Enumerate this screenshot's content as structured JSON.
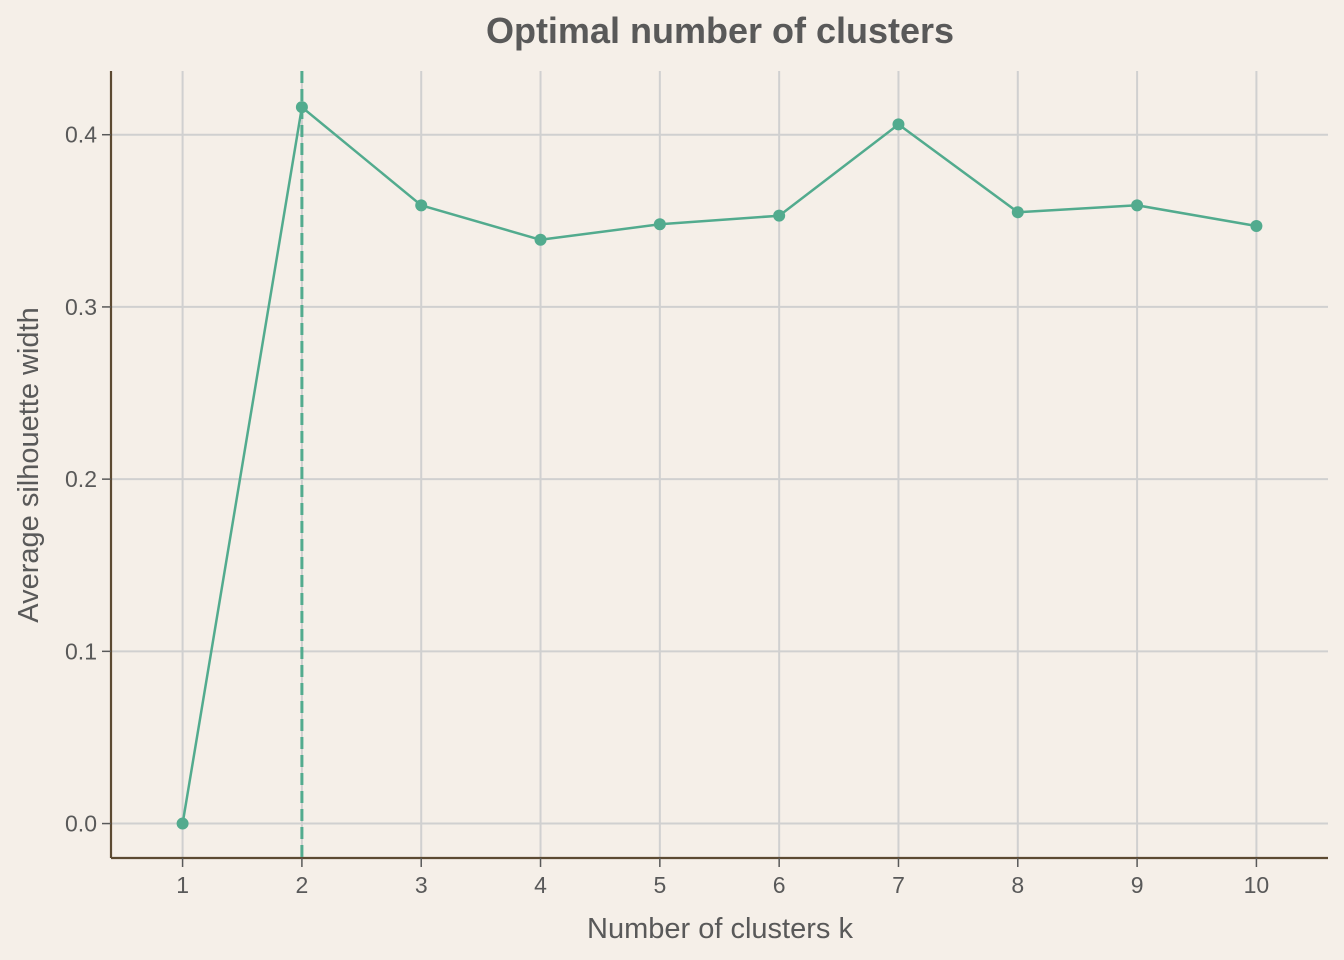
{
  "chart_data": {
    "type": "line",
    "title": "Optimal number of clusters",
    "xlabel": "Number of clusters k",
    "ylabel": "Average silhouette width",
    "x": [
      1,
      2,
      3,
      4,
      5,
      6,
      7,
      8,
      9,
      10
    ],
    "x_tick_labels": [
      "1",
      "2",
      "3",
      "4",
      "5",
      "6",
      "7",
      "8",
      "9",
      "10"
    ],
    "y_ticks": [
      0.0,
      0.1,
      0.2,
      0.3,
      0.4
    ],
    "y_tick_labels": [
      "0.0",
      "0.1",
      "0.2",
      "0.3",
      "0.4"
    ],
    "series": [
      {
        "values": [
          0.0,
          0.416,
          0.359,
          0.339,
          0.348,
          0.353,
          0.406,
          0.355,
          0.359,
          0.347
        ]
      }
    ],
    "optimal_k": 2,
    "xlim": [
      0.4,
      10.6
    ],
    "ylim": [
      -0.02,
      0.437
    ],
    "grid": true,
    "legend": "none",
    "colors": {
      "background": "#f5efe8",
      "line": "#52ab8e",
      "grid": "#d0d0d0",
      "axis": "#5c4a32",
      "text": "#595959"
    }
  }
}
